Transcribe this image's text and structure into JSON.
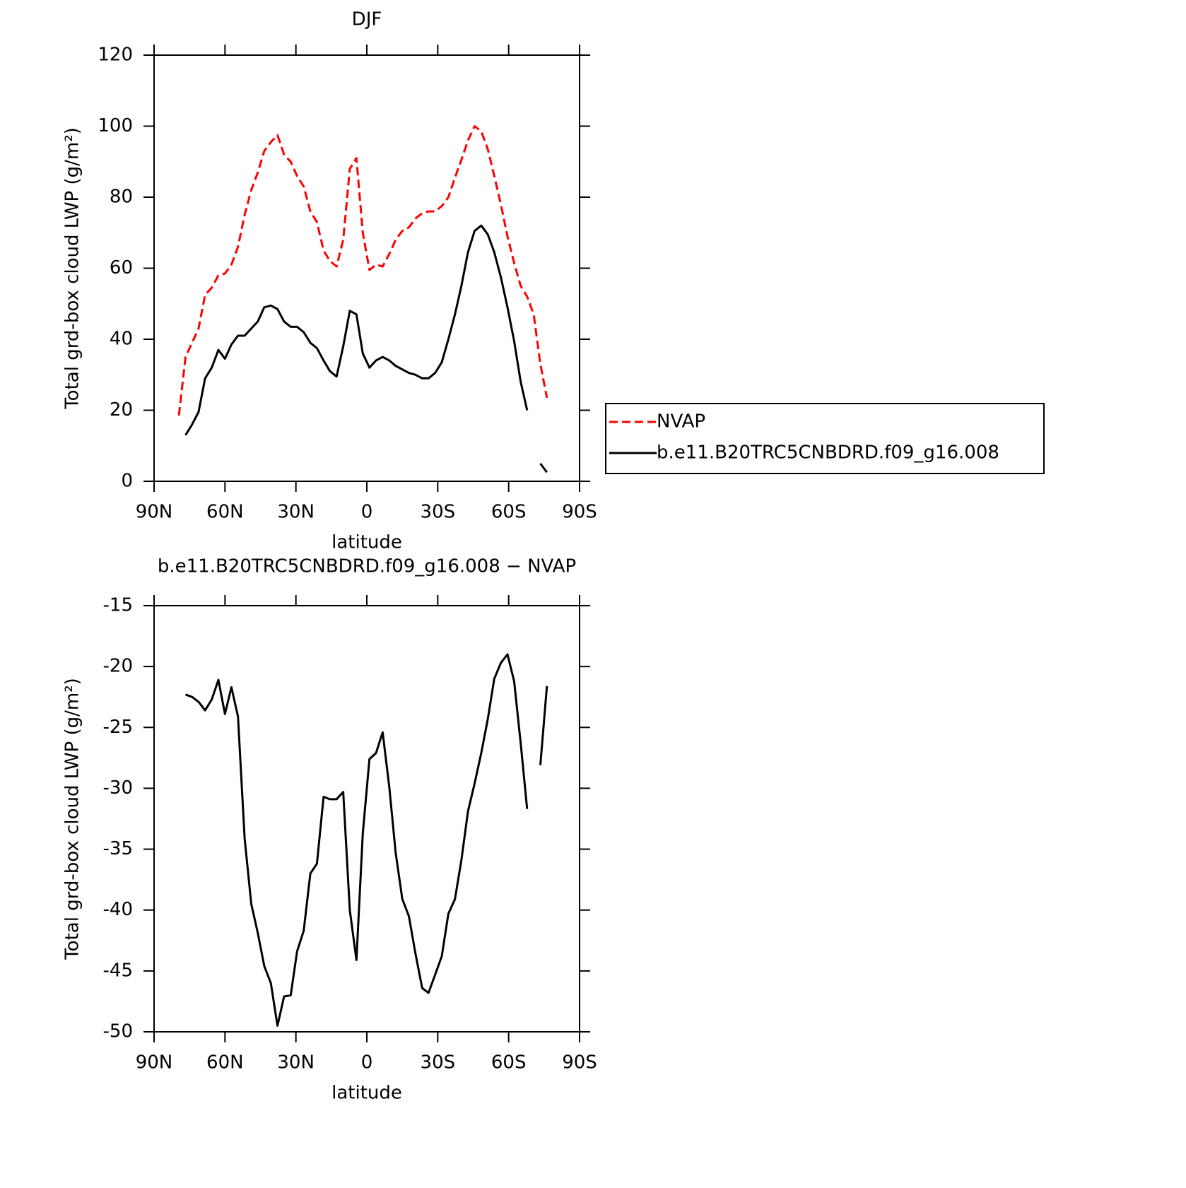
{
  "chart_data": [
    {
      "type": "line",
      "title": "DJF",
      "xlabel": "latitude",
      "ylabel": "Total grd-box cloud LWP (g/m²)",
      "xlim": [
        90,
        -90
      ],
      "xticks": [
        {
          "value": 90,
          "label": "90N"
        },
        {
          "value": 60,
          "label": "60N"
        },
        {
          "value": 30,
          "label": "30N"
        },
        0,
        {
          "value": -30,
          "label": "30S"
        },
        {
          "value": -60,
          "label": "60S"
        },
        {
          "value": -90,
          "label": "90S"
        }
      ],
      "ylim": [
        0,
        120
      ],
      "yticks": [
        0,
        20,
        40,
        60,
        80,
        100,
        120
      ],
      "x": [
        79.5,
        76.7,
        73.9,
        71.2,
        68.4,
        65.6,
        62.8,
        60.0,
        57.3,
        54.5,
        51.7,
        48.9,
        46.1,
        43.4,
        40.6,
        37.8,
        35.0,
        32.2,
        29.5,
        26.7,
        23.9,
        21.1,
        18.3,
        15.6,
        12.8,
        10.0,
        7.2,
        4.4,
        1.7,
        -1.1,
        -3.9,
        -6.7,
        -9.5,
        -12.2,
        -15.0,
        -17.8,
        -20.6,
        -23.4,
        -26.1,
        -28.9,
        -31.7,
        -34.5,
        -37.3,
        -40.0,
        -42.8,
        -45.6,
        -48.4,
        -51.2,
        -53.9,
        -56.7,
        -59.5,
        -62.3,
        -65.1,
        -67.8,
        -70.6,
        -73.4,
        -76.2
      ],
      "series": [
        {
          "name": "NVAP",
          "color": "#ff0000",
          "line_style": "dashed",
          "values": [
            18.5,
            35,
            39,
            43,
            52.5,
            54.5,
            58,
            58.5,
            61,
            66,
            75,
            82,
            87,
            93,
            95.5,
            97.5,
            92,
            90,
            86,
            83,
            76,
            73,
            65,
            62,
            60.5,
            68,
            88,
            91,
            70,
            59.5,
            61,
            60.5,
            64,
            68,
            70.5,
            71.5,
            74,
            75.5,
            76,
            76,
            77.5,
            80,
            85.5,
            90.5,
            96,
            100,
            98.5,
            93.5,
            86,
            78,
            69,
            61.5,
            55,
            52,
            47,
            33,
            23.5
          ]
        },
        {
          "name": "b.e11.B20TRC5CNBDRD.f09_g16.008",
          "color": "#000000",
          "line_style": "solid",
          "values": [
            null,
            13,
            16,
            19.5,
            29,
            32,
            37,
            34.5,
            38.5,
            41,
            41,
            43,
            45,
            49,
            49.5,
            48.5,
            45,
            43.5,
            43.5,
            42,
            39,
            37.5,
            34,
            31,
            29.5,
            38,
            48,
            47,
            36,
            32,
            34,
            35,
            34,
            32.5,
            31.5,
            30.5,
            30,
            29,
            29,
            30.5,
            33.5,
            40,
            47,
            55,
            64.5,
            70.5,
            72,
            69.5,
            64.5,
            57.5,
            49,
            39.5,
            28,
            20,
            null,
            5,
            2.5
          ]
        }
      ],
      "legend": "right"
    },
    {
      "type": "line",
      "title": "b.e11.B20TRC5CNBDRD.f09_g16.008 − NVAP",
      "xlabel": "latitude",
      "ylabel": "Total grd-box cloud LWP (g/m²)",
      "xlim": [
        90,
        -90
      ],
      "xticks": [
        {
          "value": 90,
          "label": "90N"
        },
        {
          "value": 60,
          "label": "60N"
        },
        {
          "value": 30,
          "label": "30N"
        },
        0,
        {
          "value": -30,
          "label": "30S"
        },
        {
          "value": -60,
          "label": "60S"
        },
        {
          "value": -90,
          "label": "90S"
        }
      ],
      "ylim": [
        -50,
        -15
      ],
      "yticks": [
        -50,
        -45,
        -40,
        -35,
        -30,
        -25,
        -20,
        -15
      ],
      "x": [
        79.5,
        76.7,
        73.9,
        71.2,
        68.4,
        65.6,
        62.8,
        60.0,
        57.3,
        54.5,
        51.7,
        48.9,
        46.1,
        43.4,
        40.6,
        37.8,
        35.0,
        32.2,
        29.5,
        26.7,
        23.9,
        21.1,
        18.3,
        15.6,
        12.8,
        10.0,
        7.2,
        4.4,
        1.7,
        -1.1,
        -3.9,
        -6.7,
        -9.5,
        -12.2,
        -15.0,
        -17.8,
        -20.6,
        -23.4,
        -26.1,
        -28.9,
        -31.7,
        -34.5,
        -37.3,
        -40.0,
        -42.8,
        -45.6,
        -48.4,
        -51.2,
        -53.9,
        -56.7,
        -59.5,
        -62.3,
        -65.1,
        -67.8,
        -70.6,
        -73.4,
        -76.2
      ],
      "series": [
        {
          "color": "#000000",
          "line_style": "solid",
          "values": [
            null,
            -22.3,
            -22.5,
            -22.9,
            -23.6,
            -22.7,
            -21.1,
            -23.9,
            -21.7,
            -24.1,
            -34.1,
            -39.5,
            -41.9,
            -44.6,
            -46.0,
            -49.5,
            -47.1,
            -47.0,
            -43.4,
            -41.7,
            -37.0,
            -36.2,
            -30.7,
            -30.9,
            -30.9,
            -30.3,
            -40.0,
            -44.1,
            -33.7,
            -27.6,
            -27.1,
            -25.4,
            -29.9,
            -35.3,
            -39.1,
            -40.5,
            -43.6,
            -46.4,
            -46.8,
            -45.3,
            -43.8,
            -40.3,
            -39.1,
            -35.9,
            -31.9,
            -29.6,
            -27.1,
            -24.3,
            -21.0,
            -19.7,
            -19.0,
            -21.2,
            -26.3,
            -31.7,
            null,
            -28.1,
            -21.6
          ]
        }
      ]
    }
  ]
}
